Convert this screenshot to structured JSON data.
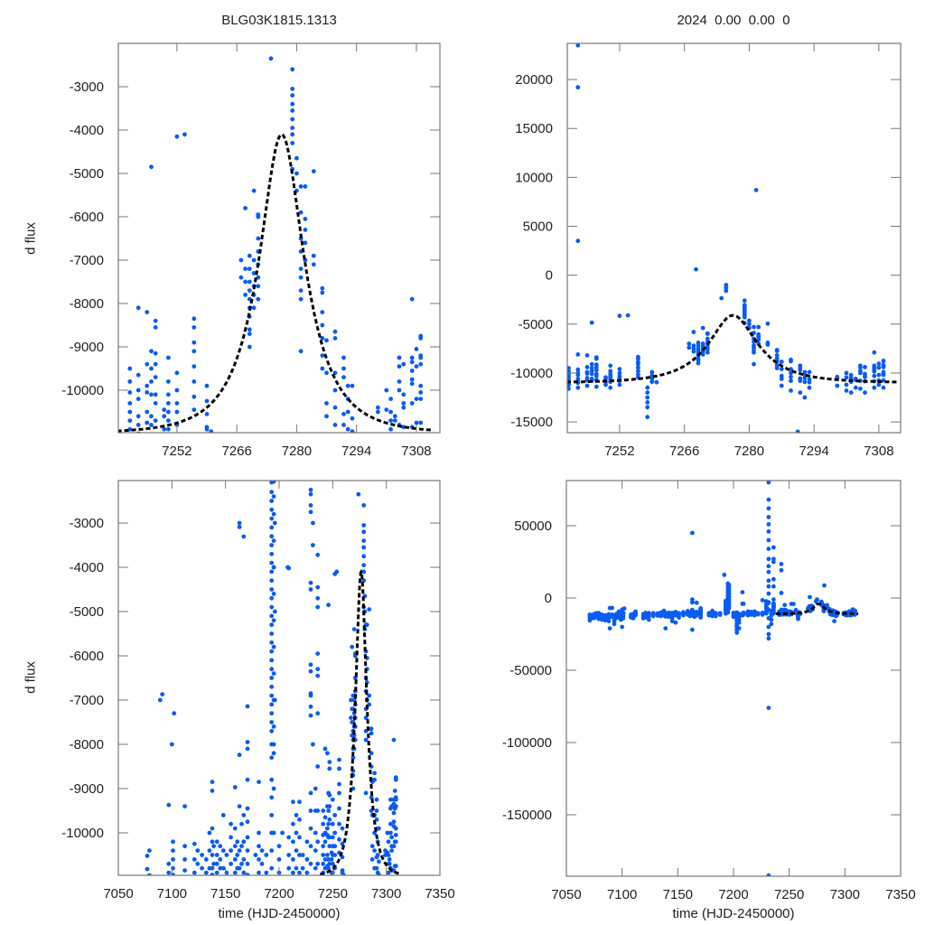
{
  "chart_data": {
    "type": "scatter",
    "titles": {
      "left": "BLG03K1815.1313",
      "right": "2024  0.00  0.00  0"
    },
    "xlabel": "time (HJD-2450000)",
    "ylabel": "d flux",
    "colors": {
      "points": "#0b5cf2",
      "model": "#000000",
      "frame": "#777777"
    },
    "model": {
      "type": "paczynski-dashed",
      "t0": 7276.5,
      "u0": 0.5,
      "tE": 11.1,
      "base_flux": -11000,
      "source_flux": 5833,
      "t_range": [
        7238,
        7312
      ]
    },
    "panels": [
      {
        "id": "top-left",
        "xlim": [
          7238.3,
          7313.5
        ],
        "ylim": [
          -10980,
          -2000
        ],
        "xticks": [
          7252,
          7266,
          7280,
          7294,
          7308
        ],
        "yticks": [
          -3000,
          -4000,
          -5000,
          -6000,
          -7000,
          -8000,
          -9000,
          -10000
        ],
        "title": "left",
        "show_ylabel": true,
        "show_xlabel": false
      },
      {
        "id": "top-right",
        "xlim": [
          7240.7,
          7312.7
        ],
        "ylim": [
          -16100,
          23700
        ],
        "xticks": [
          7252,
          7266,
          7280,
          7294,
          7308
        ],
        "yticks": [
          20000,
          15000,
          10000,
          5000,
          0,
          -5000,
          -10000,
          -15000
        ],
        "title": "right",
        "show_ylabel": false,
        "show_xlabel": false
      },
      {
        "id": "bottom-left",
        "xlim": [
          7050,
          7350
        ],
        "ylim": [
          -10960,
          -2040
        ],
        "xticks": [
          7050,
          7100,
          7150,
          7200,
          7250,
          7300,
          7350
        ],
        "yticks": [
          -3000,
          -4000,
          -5000,
          -6000,
          -7000,
          -8000,
          -9000,
          -10000
        ],
        "show_ylabel": true,
        "show_xlabel": true
      },
      {
        "id": "bottom-right",
        "xlim": [
          7050,
          7350
        ],
        "ylim": [
          -192500,
          81250
        ],
        "xticks": [
          7050,
          7100,
          7150,
          7200,
          7250,
          7300,
          7350
        ],
        "yticks": [
          50000,
          0,
          -50000,
          -100000,
          -150000
        ],
        "show_ylabel": false,
        "show_xlabel": true
      }
    ],
    "columns_note": "each entry: [time, [d flux values observed at that time]]",
    "columns": [
      [
        7071,
        [
          -11500,
          -12500,
          -13500,
          -15500
        ]
      ],
      [
        7073,
        [
          -12000,
          -13000,
          -14000
        ]
      ],
      [
        7075,
        [
          -11000,
          -12200,
          -13800
        ]
      ],
      [
        7077,
        [
          -10520,
          -10820,
          -11500,
          -12800
        ]
      ],
      [
        7079,
        [
          -10400,
          -10960,
          -12000,
          -14500
        ]
      ],
      [
        7082,
        [
          -11500,
          -13000,
          -14000,
          -15000
        ]
      ],
      [
        7085,
        [
          -12000,
          -13500,
          -15500
        ]
      ],
      [
        7088,
        [
          -11200,
          -12800,
          -14200,
          -16000
        ]
      ],
      [
        7089,
        [
          -7000,
          -21000,
          -12000
        ]
      ],
      [
        7091,
        [
          -6870,
          -11500,
          -13000
        ]
      ],
      [
        7093,
        [
          -12000,
          -14500,
          -16000,
          -18000
        ]
      ],
      [
        7095,
        [
          -11000,
          -12500,
          -13800
        ]
      ],
      [
        7097,
        [
          -9370,
          -10700,
          -10900,
          -12000,
          -13500
        ]
      ],
      [
        7099,
        [
          -11000,
          -12000,
          -15000
        ]
      ],
      [
        7100,
        [
          -20000,
          -8000,
          -11500
        ]
      ],
      [
        7101,
        [
          -10200,
          -10400,
          -10600,
          -10800,
          -10950,
          -12500,
          -14000
        ]
      ],
      [
        7102,
        [
          -7300
        ]
      ],
      [
        7108,
        [
          -11500,
          -12500,
          -13500
        ]
      ],
      [
        7110,
        [
          -11000,
          -12000,
          -13000,
          -14000
        ]
      ],
      [
        7112,
        [
          -9400,
          -10300,
          -10600,
          -10850,
          -12000
        ]
      ],
      [
        7119,
        [
          -11200,
          -12600,
          -14000
        ]
      ],
      [
        7121,
        [
          -10250,
          -10600,
          -10900,
          -12000,
          -13500
        ]
      ],
      [
        7124,
        [
          -10400,
          -10700,
          -11500,
          -13000,
          -15000
        ]
      ],
      [
        7128,
        [
          -10500,
          -10800,
          -11500,
          -12500
        ]
      ],
      [
        7132,
        [
          -10600,
          -10900,
          -11200,
          -12200
        ]
      ],
      [
        7135,
        [
          -10000,
          -10400,
          -10800,
          -11800,
          -12500
        ]
      ],
      [
        7137.6,
        [
          -8850,
          -9050,
          -9900,
          -10200,
          -10500,
          -10800,
          -10950,
          -12000
        ]
      ],
      [
        7139,
        [
          -21000,
          -10300,
          -10700,
          -11500,
          -12800
        ]
      ],
      [
        7142,
        [
          -10200,
          -10500,
          -10700,
          -10900,
          -11500,
          -13000
        ]
      ],
      [
        7145,
        [
          -10300,
          -10600,
          -10800,
          -11800,
          -14000,
          -16000
        ]
      ],
      [
        7148,
        [
          -9600,
          -10400,
          -10800,
          -12000,
          -17000
        ]
      ],
      [
        7151,
        [
          -10500,
          -10900,
          -11500,
          -13500
        ]
      ],
      [
        7155,
        [
          -9800,
          -10100,
          -10400,
          -10700,
          -11200,
          -12000
        ]
      ],
      [
        7159,
        [
          -8970,
          -9900,
          -10300,
          -10600,
          -10900,
          -11500
        ]
      ],
      [
        7161,
        [
          -10200,
          -10500,
          -10800,
          -12500
        ]
      ],
      [
        7163,
        [
          -3090,
          -8240,
          -9400,
          -10400,
          -10800,
          45000,
          -1000,
          -3000,
          -22000,
          -12000
        ]
      ],
      [
        7165,
        [
          -9800,
          -10300,
          -10700,
          -11500,
          -13000
        ]
      ],
      [
        7167,
        [
          -3305,
          -9600,
          -10200,
          -10600,
          -10900,
          -12000
        ]
      ],
      [
        7170.5,
        [
          -7140,
          -7950,
          -8100,
          -8800,
          -9450,
          -9750,
          -10100,
          -10400,
          -10700,
          -10950,
          -12000,
          -13500
        ]
      ],
      [
        7178,
        [
          -10500,
          -11000,
          -12000
        ]
      ],
      [
        7181,
        [
          -8850,
          -10000,
          -10300,
          -10600,
          -10900,
          -11500,
          -12500
        ]
      ],
      [
        7184,
        [
          -10400,
          -10700,
          -11500,
          -12500
        ]
      ],
      [
        7188,
        [
          -10500,
          -10900,
          -11600
        ]
      ],
      [
        7191.7,
        [
          16000
        ]
      ],
      [
        7193,
        [
          -2080,
          -2300,
          -2500,
          -2700,
          -2900,
          -3100,
          -3300,
          -3500,
          -3700,
          -3900,
          -4100,
          -4300,
          -4500,
          -4700,
          -4900,
          -5100,
          -5300,
          -5500,
          -5700,
          -5900,
          -6100,
          -6300,
          -6500,
          -6700,
          -6900,
          -7100,
          -7300,
          -7500,
          -7700,
          -8000,
          -8300,
          -8800,
          -9200,
          -9600,
          -10000,
          -10400,
          -10800
        ]
      ],
      [
        7195,
        [
          -2060,
          -2400,
          -2800,
          -3400,
          -4000,
          -4600,
          -5200,
          -5800,
          -6400,
          -7000,
          -7600,
          -8200,
          -9000,
          -10000,
          10000,
          8000,
          6000,
          4000,
          2000,
          0,
          -2000,
          -4000,
          -8000
        ]
      ],
      [
        7196,
        [
          9000,
          7000,
          5000,
          3000,
          1000,
          -1000,
          -3000,
          -5000,
          -7000
        ]
      ],
      [
        7200,
        [
          -10300,
          -10600,
          -10900,
          -12000,
          -13000
        ]
      ],
      [
        7203,
        [
          -10000,
          -12000,
          -14000,
          -16000,
          -18000,
          -20000,
          -22000,
          -24000,
          -15000,
          -19000
        ]
      ],
      [
        7205,
        [
          -11000,
          -13000,
          -15000,
          -17000,
          -21000
        ]
      ],
      [
        7208,
        [
          4000,
          -4000,
          -11000,
          -12000
        ]
      ],
      [
        7209,
        [
          -4020,
          -10100,
          -10500,
          -10800,
          -11500
        ]
      ],
      [
        7213,
        [
          -9300,
          -9800,
          -10200,
          -10600,
          -10900,
          -12000
        ]
      ],
      [
        7216,
        [
          -9600,
          -10000,
          -10400,
          -10800,
          -11500
        ]
      ],
      [
        7219,
        [
          -9300,
          -9700,
          -10100,
          -10500,
          -10900,
          -12000
        ]
      ],
      [
        7222,
        [
          -10500,
          -10800,
          -11300
        ]
      ],
      [
        7226,
        [
          -1500,
          -10200,
          -10600,
          -10900,
          -11500
        ]
      ],
      [
        7229.5,
        [
          -2250,
          -2350,
          -2600,
          -2750,
          -4350,
          -4500,
          -6200,
          -6350,
          -6850,
          -6900,
          -7150,
          -7350,
          -9100,
          -9500,
          -9900,
          -10300,
          -10700
        ]
      ],
      [
        7231.5,
        [
          -3500,
          80000,
          68000,
          62000,
          56000,
          51000,
          46000,
          40000,
          34000,
          27000,
          22000,
          18000,
          12000,
          8000,
          3000,
          -3000,
          -8000,
          -14000,
          -20000,
          -25000,
          -28000,
          -76000,
          -192000
        ]
      ],
      [
        7234,
        [
          -9000,
          -9500,
          -10000,
          -10400,
          -10800,
          -12000,
          -15000,
          -18000
        ]
      ],
      [
        7236,
        [
          -3720,
          -4450,
          -4700,
          -4900,
          -5950,
          -6300,
          -6450,
          -7300,
          -8500,
          -9500,
          -10200,
          -10700,
          35000,
          27000,
          25000,
          13000,
          8000,
          -1000
        ]
      ],
      [
        7241,
        [
          -9500,
          -9800,
          -10050,
          -10300,
          -10500,
          -10700,
          -10900,
          -11200,
          -11600
        ]
      ],
      [
        7243,
        [
          -8100,
          -9650,
          -10000,
          -10200,
          -10600,
          -10800,
          -11000,
          23500,
          19200,
          3500,
          -11500
        ]
      ],
      [
        7245,
        [
          -8200,
          -9400,
          -9900,
          -10050,
          -10500,
          -10750,
          -11300
        ]
      ],
      [
        7246,
        [
          -4850,
          -9100,
          -9500,
          -9800,
          -10100,
          -10600,
          -10800
        ]
      ],
      [
        7247,
        [
          -8400,
          -8550,
          -9150,
          -9400,
          -9700,
          -10100,
          -10300,
          -10700,
          -11400
        ]
      ],
      [
        7249,
        [
          -10450,
          -10600,
          -10900,
          -11200
        ]
      ],
      [
        7250,
        [
          -9250,
          -9800,
          -10100,
          -10300,
          -10500,
          -10700,
          -10900,
          -11500
        ]
      ],
      [
        7252,
        [
          -4150,
          -9600,
          -10000,
          -10300,
          -10500,
          -10800,
          -11200
        ]
      ],
      [
        7253.8,
        [
          -4100
        ]
      ],
      [
        7256,
        [
          -8350,
          -8550,
          -8900,
          -9100,
          -9450,
          -9800,
          -10150,
          -10450
        ]
      ],
      [
        7258,
        [
          -11500,
          -12000,
          -12500,
          -13000,
          -13500,
          -14500
        ]
      ],
      [
        7259,
        [
          -9900,
          -10250,
          -10550,
          -10850,
          -10900
        ]
      ],
      [
        7260,
        [
          -10950
        ]
      ],
      [
        7267,
        [
          -7000,
          -7400
        ]
      ],
      [
        7268,
        [
          -5800,
          -7200,
          -7500,
          -7800
        ]
      ],
      [
        7268.5,
        [
          600
        ]
      ],
      [
        7269,
        [
          -6900,
          -7200,
          -7500,
          -7700,
          -7900,
          -8100,
          -8300,
          -8600,
          -8700,
          -9000
        ]
      ],
      [
        7270,
        [
          -5400,
          -7000,
          -7300,
          -7600,
          -7800,
          -8100
        ]
      ],
      [
        7271,
        [
          -5950,
          -6000,
          -6500,
          -6800,
          -7100,
          -7400,
          -7600,
          -7900
        ]
      ],
      [
        7274,
        [
          -2350
        ]
      ],
      [
        7275,
        [
          -1000,
          -1300,
          -1600
        ]
      ],
      [
        7279,
        [
          -2600,
          -3050,
          -3200,
          -3400,
          -3550,
          -3750,
          -3950,
          -4100,
          -4300,
          -4900
        ]
      ],
      [
        7280,
        [
          -4650,
          -5000,
          -5400
        ]
      ],
      [
        7281,
        [
          -5300,
          -5900,
          -6500,
          -6800,
          -7200,
          -7400,
          -7700,
          -7900,
          -9100
        ]
      ],
      [
        7281.5,
        [
          8700
        ]
      ],
      [
        7282,
        [
          -5300,
          -6050,
          -6300,
          -6600,
          -7000
        ]
      ],
      [
        7284,
        [
          -4950,
          -6900,
          -7100
        ]
      ],
      [
        7286,
        [
          -7650,
          -7750,
          -8200,
          -8500,
          -8800,
          -9200,
          -9500
        ]
      ],
      [
        7287,
        [
          -8850,
          -9600,
          -10300,
          -10600,
          -11300
        ]
      ],
      [
        7289,
        [
          -8650,
          -8800,
          -9600,
          -10000,
          -10400,
          -10800,
          -11800
        ]
      ],
      [
        7290.5,
        [
          -16000
        ]
      ],
      [
        7291,
        [
          -9250,
          -9500,
          -9700,
          -10550,
          -10800,
          -12000
        ]
      ],
      [
        7292,
        [
          -9900,
          -10200,
          -10500,
          -10900,
          -12500
        ]
      ],
      [
        7293,
        [
          -9900,
          -10650,
          -10950,
          -11500
        ]
      ],
      [
        7299,
        [
          -10400,
          -10500,
          -11300
        ]
      ],
      [
        7301,
        [
          -10000,
          -10450,
          -11200,
          -11800
        ]
      ],
      [
        7302,
        [
          -10200,
          -10500,
          -10700,
          -10900,
          -12000
        ]
      ],
      [
        7303,
        [
          -10600,
          -10700,
          -11500
        ]
      ],
      [
        7304,
        [
          -9250,
          -9450,
          -9800,
          -10000,
          -10800,
          -11600
        ]
      ],
      [
        7305,
        [
          -9400,
          -10100,
          -10300,
          -10400,
          -10850,
          -12000
        ]
      ],
      [
        7307,
        [
          -7900,
          -9250,
          -9350,
          -9550,
          -9750,
          -9850,
          -10300,
          -10850,
          -11500
        ]
      ],
      [
        7308,
        [
          -9050,
          -9450,
          -10200,
          -10750,
          -11200
        ]
      ],
      [
        7309,
        [
          -8750,
          -8800,
          -9200,
          -9250,
          -9400,
          -9900,
          -10050,
          -10200,
          -10750,
          -11500
        ]
      ]
    ]
  }
}
